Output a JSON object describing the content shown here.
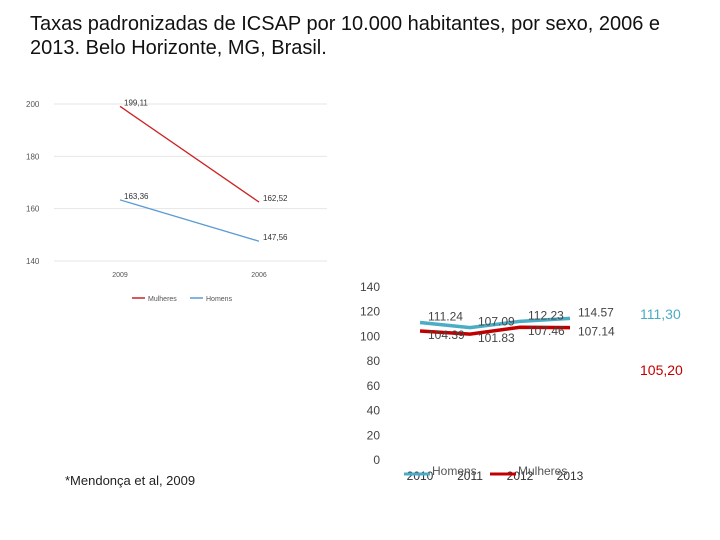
{
  "title": "Taxas padronizadas de ICSAP por 10.000 habitantes, por sexo, 2006 e 2013. Belo Horizonte, MG, Brasil.",
  "footnote": "*Mendonça et al, 2009",
  "side_values": {
    "homens": "111,30",
    "mulheres": "105,20"
  },
  "colors": {
    "homens": "#5b9bd5",
    "mulheres": "#cc2222",
    "homens_light": "#4bacc6",
    "mulheres_dark": "#c00000"
  },
  "chart_data": [
    {
      "type": "line",
      "title": "",
      "categories": [
        "2009",
        "2006"
      ],
      "ylim": [
        140,
        200
      ],
      "yticks": [
        "200",
        "180",
        "160",
        "140"
      ],
      "series": [
        {
          "name": "Mulheres",
          "values": [
            199.11,
            162.52
          ],
          "labels": [
            "199,11",
            "162,52"
          ]
        },
        {
          "name": "Homens",
          "values": [
            163.36,
            147.56
          ],
          "labels": [
            "163,36",
            "147,56"
          ]
        }
      ],
      "legend": "bottom"
    },
    {
      "type": "line",
      "title": "",
      "categories": [
        "2010",
        "2011",
        "2012",
        "2013"
      ],
      "ylim": [
        0,
        140
      ],
      "yticks": [
        "140",
        "120",
        "100",
        "80",
        "60",
        "40",
        "20",
        "0"
      ],
      "series": [
        {
          "name": "Homens",
          "values": [
            111.24,
            107.09,
            112.23,
            114.57
          ],
          "labels": [
            "111.24",
            "107.09",
            "112.23",
            "114.57"
          ]
        },
        {
          "name": "Mulheres",
          "values": [
            104.39,
            101.83,
            107.46,
            107.14
          ],
          "labels": [
            "104.39",
            "101.83",
            "107.46",
            "107.14"
          ]
        }
      ],
      "legend": "bottom"
    }
  ]
}
